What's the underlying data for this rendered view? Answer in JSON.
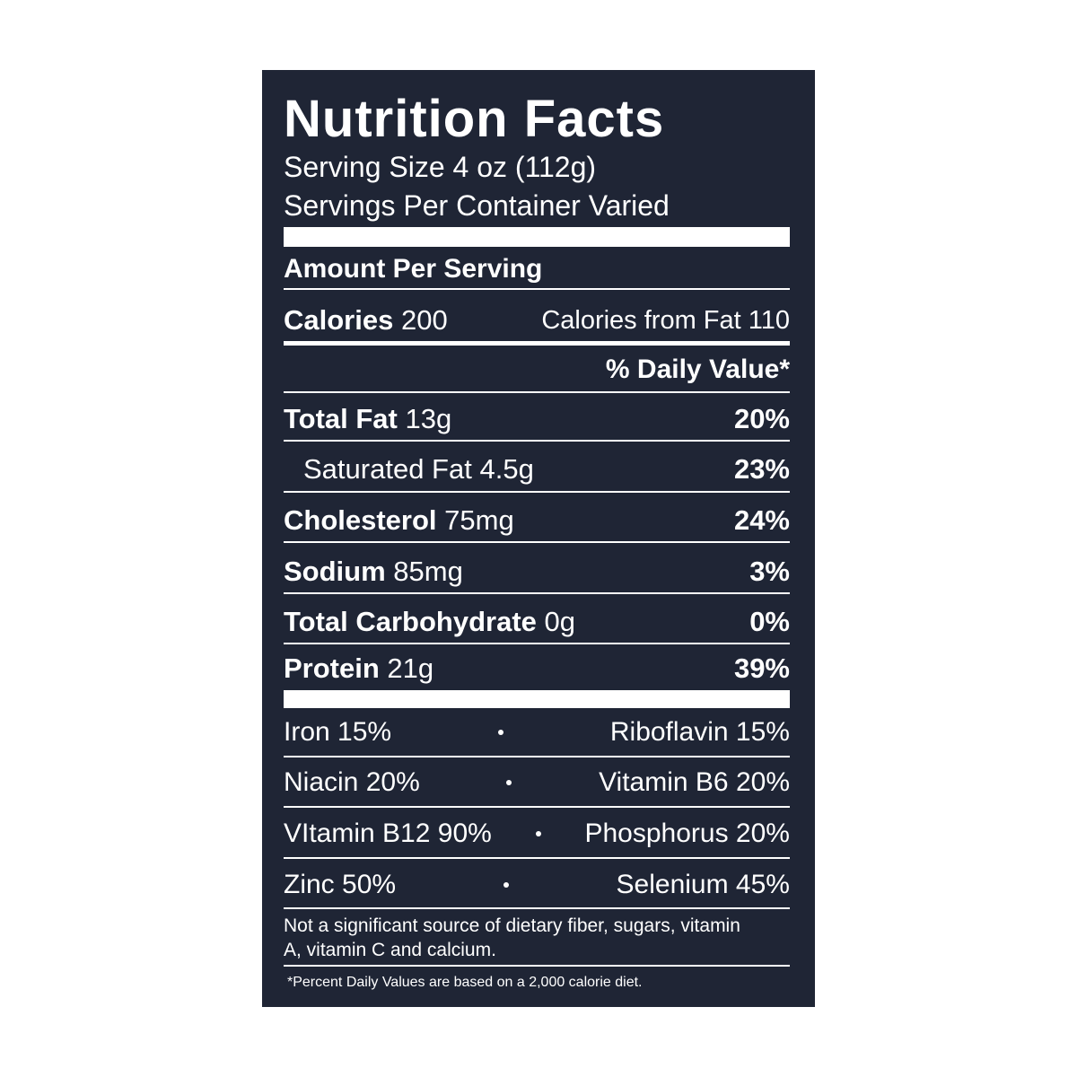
{
  "header": {
    "title": "Nutrition Facts",
    "serving_size": "Serving Size 4 oz (112g)",
    "servings_per_container": "Servings Per Container Varied"
  },
  "amount_per_serving": "Amount Per Serving",
  "calories": {
    "label": "Calories",
    "value": "200",
    "from_fat": "Calories from Fat 110"
  },
  "daily_value_header": "% Daily Value*",
  "nutrients": [
    {
      "label": "Total Fat",
      "amount": "13g",
      "dv": "20%"
    },
    {
      "label": "Saturated Fat",
      "amount": "4.5g",
      "dv": "23%"
    },
    {
      "label": "Cholesterol",
      "amount": "75mg",
      "dv": "24%"
    },
    {
      "label": "Sodium",
      "amount": "85mg",
      "dv": "3%"
    },
    {
      "label": "Total Carbohydrate",
      "amount": "0g",
      "dv": "0%"
    },
    {
      "label": "Protein",
      "amount": "21g",
      "dv": "39%"
    }
  ],
  "vitamins": [
    [
      "Iron 15%",
      "Riboflavin 15%"
    ],
    [
      "Niacin 20%",
      "Vitamin B6 20%"
    ],
    [
      "VItamin B12 90%",
      "Phosphorus 20%"
    ],
    [
      "Zinc 50%",
      "Selenium 45%"
    ]
  ],
  "footnotes": [
    "Not a significant source of dietary fiber, sugars, vitamin A, vitamin C and calcium.",
    "*Percent Daily Values are based on a 2,000 calorie diet."
  ]
}
